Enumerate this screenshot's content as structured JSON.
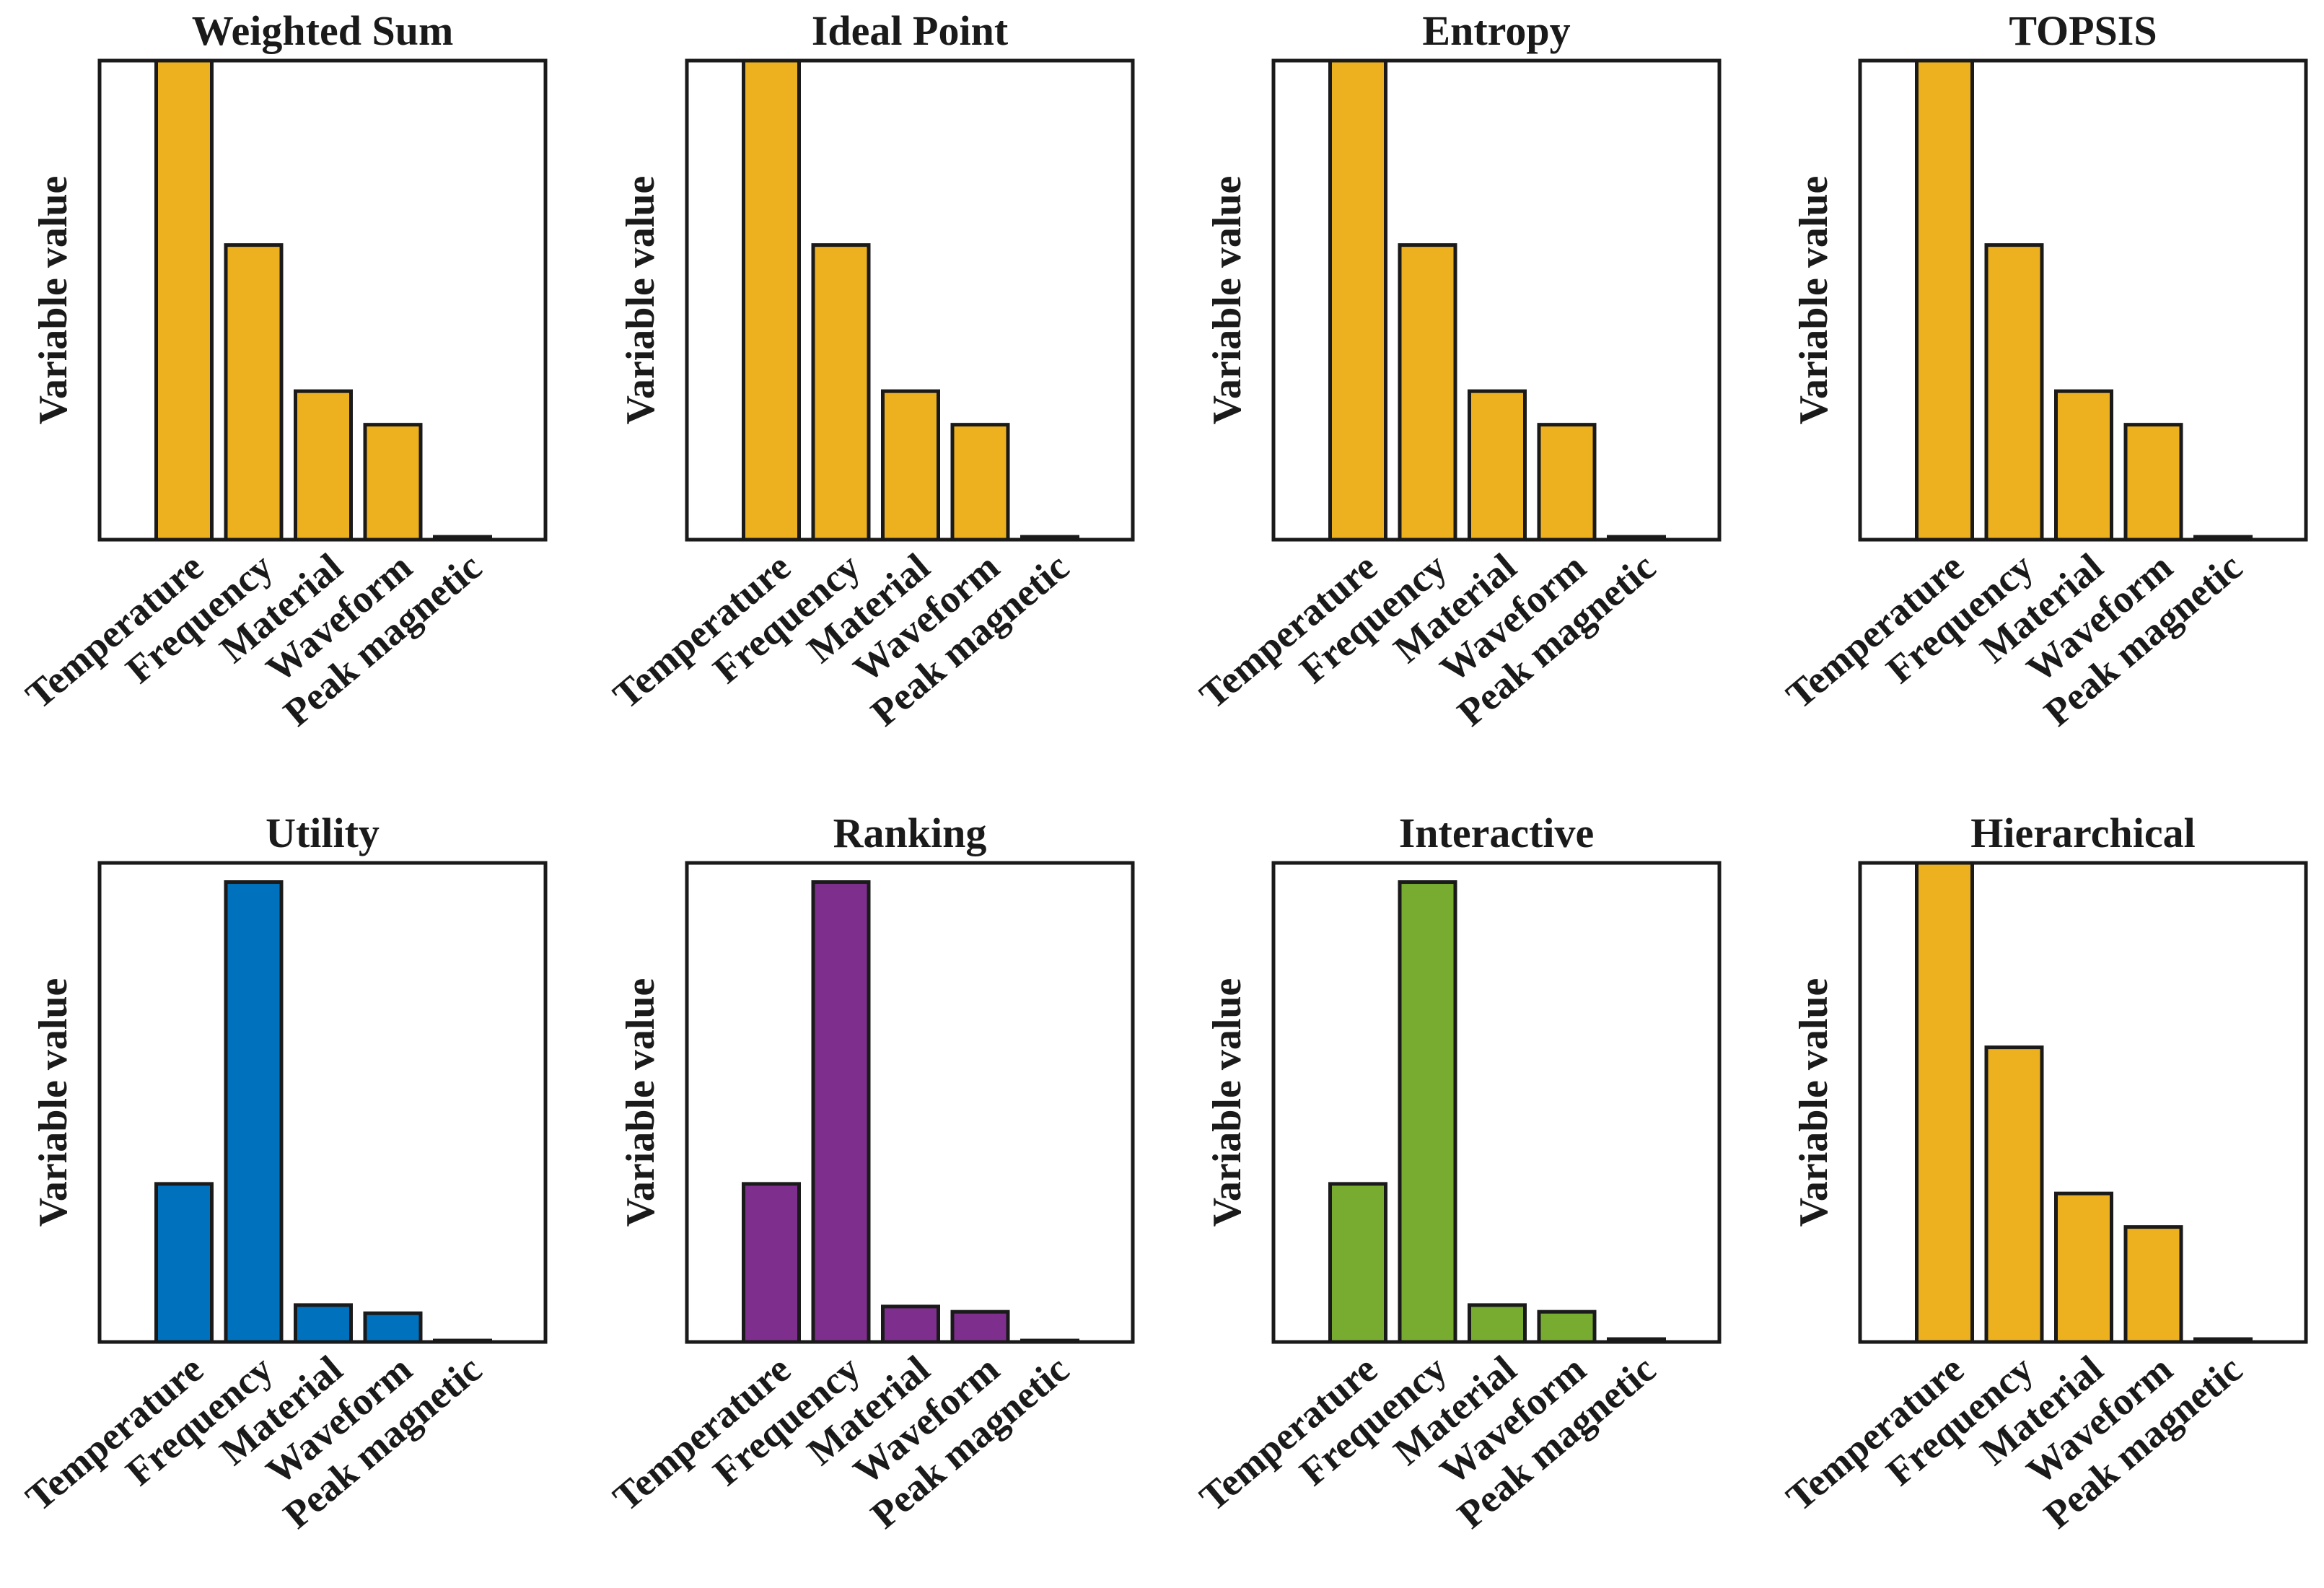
{
  "chart_data": [
    {
      "type": "bar",
      "title": "Weighted Sum",
      "xlabel": "",
      "ylabel": "Variable value",
      "categories": [
        "Temperature",
        "Frequency",
        "Material",
        "Waveform",
        "Peak magnetic"
      ],
      "values": [
        1.0,
        0.615,
        0.31,
        0.24,
        0.006
      ],
      "ylim": [
        0,
        1
      ],
      "bar_color": "#EDB120",
      "grid": false
    },
    {
      "type": "bar",
      "title": "Ideal Point",
      "xlabel": "",
      "ylabel": "Variable value",
      "categories": [
        "Temperature",
        "Frequency",
        "Material",
        "Waveform",
        "Peak magnetic"
      ],
      "values": [
        1.0,
        0.615,
        0.31,
        0.24,
        0.006
      ],
      "ylim": [
        0,
        1
      ],
      "bar_color": "#EDB120",
      "grid": false
    },
    {
      "type": "bar",
      "title": "Entropy",
      "xlabel": "",
      "ylabel": "Variable value",
      "categories": [
        "Temperature",
        "Frequency",
        "Material",
        "Waveform",
        "Peak magnetic"
      ],
      "values": [
        1.0,
        0.615,
        0.31,
        0.24,
        0.006
      ],
      "ylim": [
        0,
        1
      ],
      "bar_color": "#EDB120",
      "grid": false
    },
    {
      "type": "bar",
      "title": "TOPSIS",
      "xlabel": "",
      "ylabel": "Variable value",
      "categories": [
        "Temperature",
        "Frequency",
        "Material",
        "Waveform",
        "Peak magnetic"
      ],
      "values": [
        1.0,
        0.615,
        0.31,
        0.24,
        0.006
      ],
      "ylim": [
        0,
        1
      ],
      "bar_color": "#EDB120",
      "grid": false
    },
    {
      "type": "bar",
      "title": "Utility",
      "xlabel": "",
      "ylabel": "Variable value",
      "categories": [
        "Temperature",
        "Frequency",
        "Material",
        "Waveform",
        "Peak magnetic"
      ],
      "values": [
        0.33,
        0.96,
        0.077,
        0.06,
        0.003
      ],
      "ylim": [
        0,
        1
      ],
      "bar_color": "#0072BD",
      "grid": false
    },
    {
      "type": "bar",
      "title": "Ranking",
      "xlabel": "",
      "ylabel": "Variable value",
      "categories": [
        "Temperature",
        "Frequency",
        "Material",
        "Waveform",
        "Peak magnetic"
      ],
      "values": [
        0.33,
        0.96,
        0.074,
        0.063,
        0.003
      ],
      "ylim": [
        0,
        1
      ],
      "bar_color": "#7E2F8E",
      "grid": false
    },
    {
      "type": "bar",
      "title": "Interactive",
      "xlabel": "",
      "ylabel": "Variable value",
      "categories": [
        "Temperature",
        "Frequency",
        "Material",
        "Waveform",
        "Peak magnetic"
      ],
      "values": [
        0.33,
        0.96,
        0.077,
        0.063,
        0.006
      ],
      "ylim": [
        0,
        1
      ],
      "bar_color": "#77AC30",
      "grid": false
    },
    {
      "type": "bar",
      "title": "Hierarchical",
      "xlabel": "",
      "ylabel": "Variable value",
      "categories": [
        "Temperature",
        "Frequency",
        "Material",
        "Waveform",
        "Peak magnetic"
      ],
      "values": [
        1.0,
        0.615,
        0.31,
        0.24,
        0.006
      ],
      "ylim": [
        0,
        1
      ],
      "bar_color": "#EDB120",
      "grid": false
    }
  ]
}
